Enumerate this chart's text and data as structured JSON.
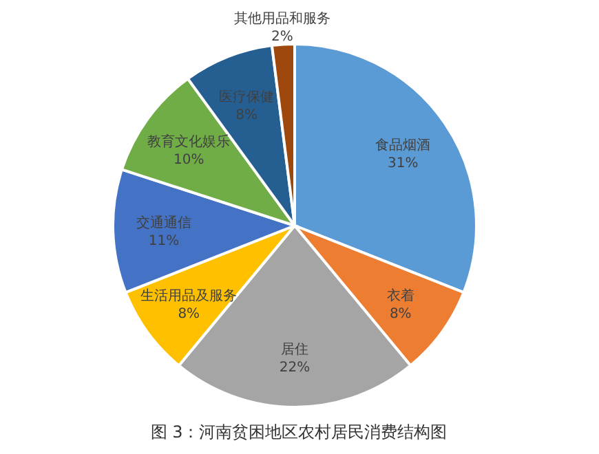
{
  "chart_data": {
    "type": "pie",
    "title": "图 3：河南贫困地区农村居民消费结构图",
    "categories": [
      "食品烟酒",
      "衣着",
      "居住",
      "生活用品及服务",
      "交通通信",
      "教育文化娱乐",
      "医疗保健",
      "其他用品和服务"
    ],
    "values": [
      31,
      8,
      22,
      8,
      11,
      10,
      8,
      2
    ],
    "colors": [
      "#5b9bd5",
      "#ed7d31",
      "#a5a5a5",
      "#ffc000",
      "#4472c4",
      "#70ad47",
      "#255e91",
      "#9e480e"
    ],
    "value_labels": [
      "31%",
      "8%",
      "22%",
      "8%",
      "11%",
      "10%",
      "8%",
      "2%"
    ],
    "legend": false
  }
}
